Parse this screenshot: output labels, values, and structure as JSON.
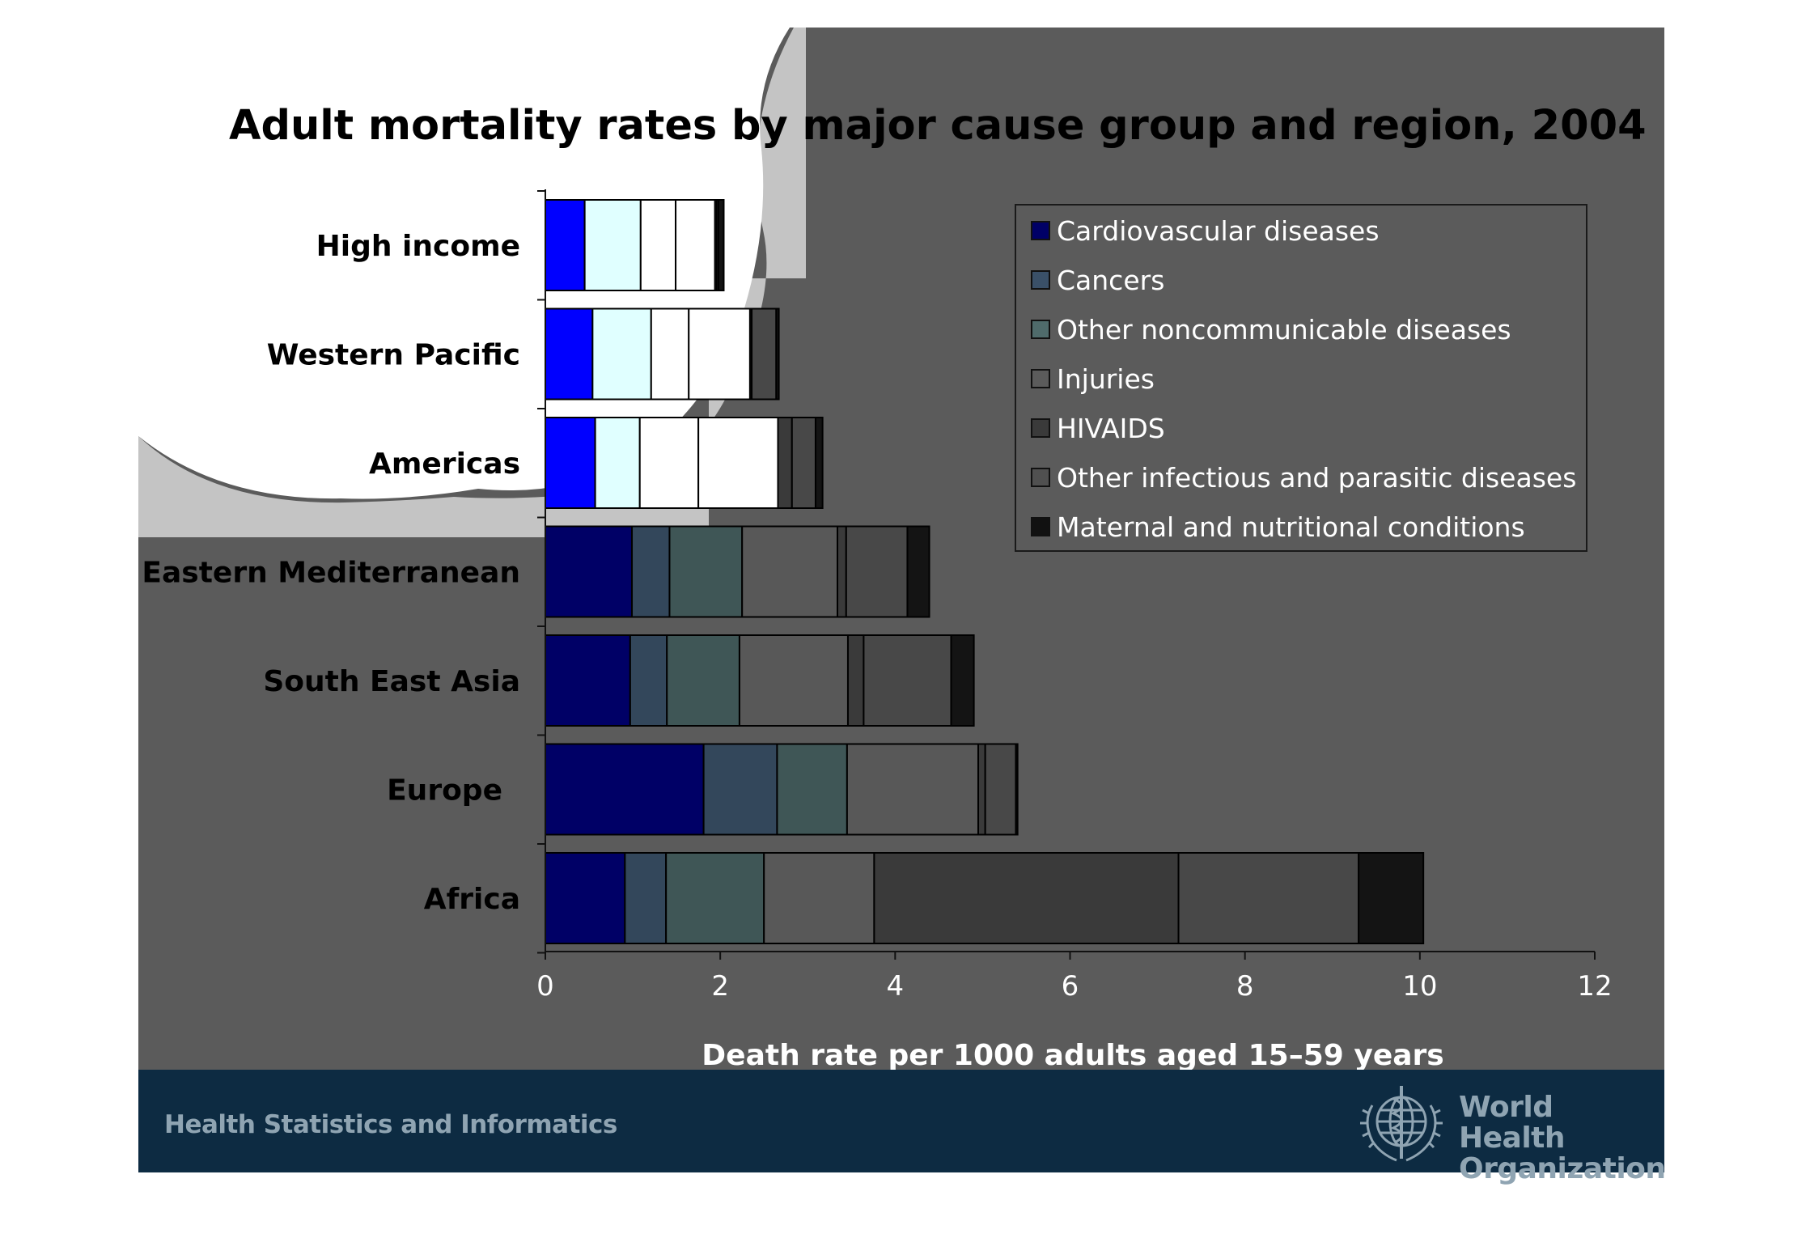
{
  "chart_data": {
    "type": "bar",
    "orientation": "horizontal",
    "stacked": true,
    "title": "Adult mortality rates by major cause group and region, 2004",
    "xlabel": "Death rate per 1000 adults aged 15–59 years",
    "ylabel": "",
    "xlim": [
      0,
      12
    ],
    "xticks": [
      0,
      2,
      4,
      6,
      8,
      10,
      12
    ],
    "grid": false,
    "legend_position": "top-right",
    "categories": [
      "High income",
      "Western Pacific",
      "Americas",
      "Eastern Mediterranean",
      "South East Asia",
      "Europe",
      "Africa"
    ],
    "series": [
      {
        "name": "Cardiovascular diseases",
        "color": "#000066",
        "values": [
          0.45,
          0.54,
          0.57,
          0.99,
          0.97,
          1.81,
          0.91
        ]
      },
      {
        "name": "Cancers",
        "color": "#33475b",
        "values": [
          0.64,
          0.67,
          0.51,
          0.43,
          0.42,
          0.84,
          0.47
        ]
      },
      {
        "name": "Other noncommunicable diseases",
        "color": "#3f5656",
        "values": [
          0.4,
          0.43,
          0.67,
          0.83,
          0.83,
          0.8,
          1.12
        ]
      },
      {
        "name": "Injuries",
        "color": "#585858",
        "values": [
          0.45,
          0.7,
          0.91,
          1.09,
          1.24,
          1.5,
          1.26
        ]
      },
      {
        "name": "HIVAIDS",
        "color": "#3a3a3a",
        "values": [
          0.02,
          0.02,
          0.16,
          0.1,
          0.18,
          0.08,
          3.48
        ]
      },
      {
        "name": "Other infectious and parasitic diseases",
        "color": "#484848",
        "values": [
          0.02,
          0.28,
          0.27,
          0.7,
          1.0,
          0.35,
          2.06
        ]
      },
      {
        "name": "Maternal and nutritional conditions",
        "color": "#141414",
        "values": [
          0.06,
          0.03,
          0.08,
          0.25,
          0.26,
          0.02,
          0.74
        ]
      }
    ]
  },
  "footer": {
    "left_text": "Health Statistics and Informatics",
    "org_line1": "World Health",
    "org_line2": "Organization"
  }
}
